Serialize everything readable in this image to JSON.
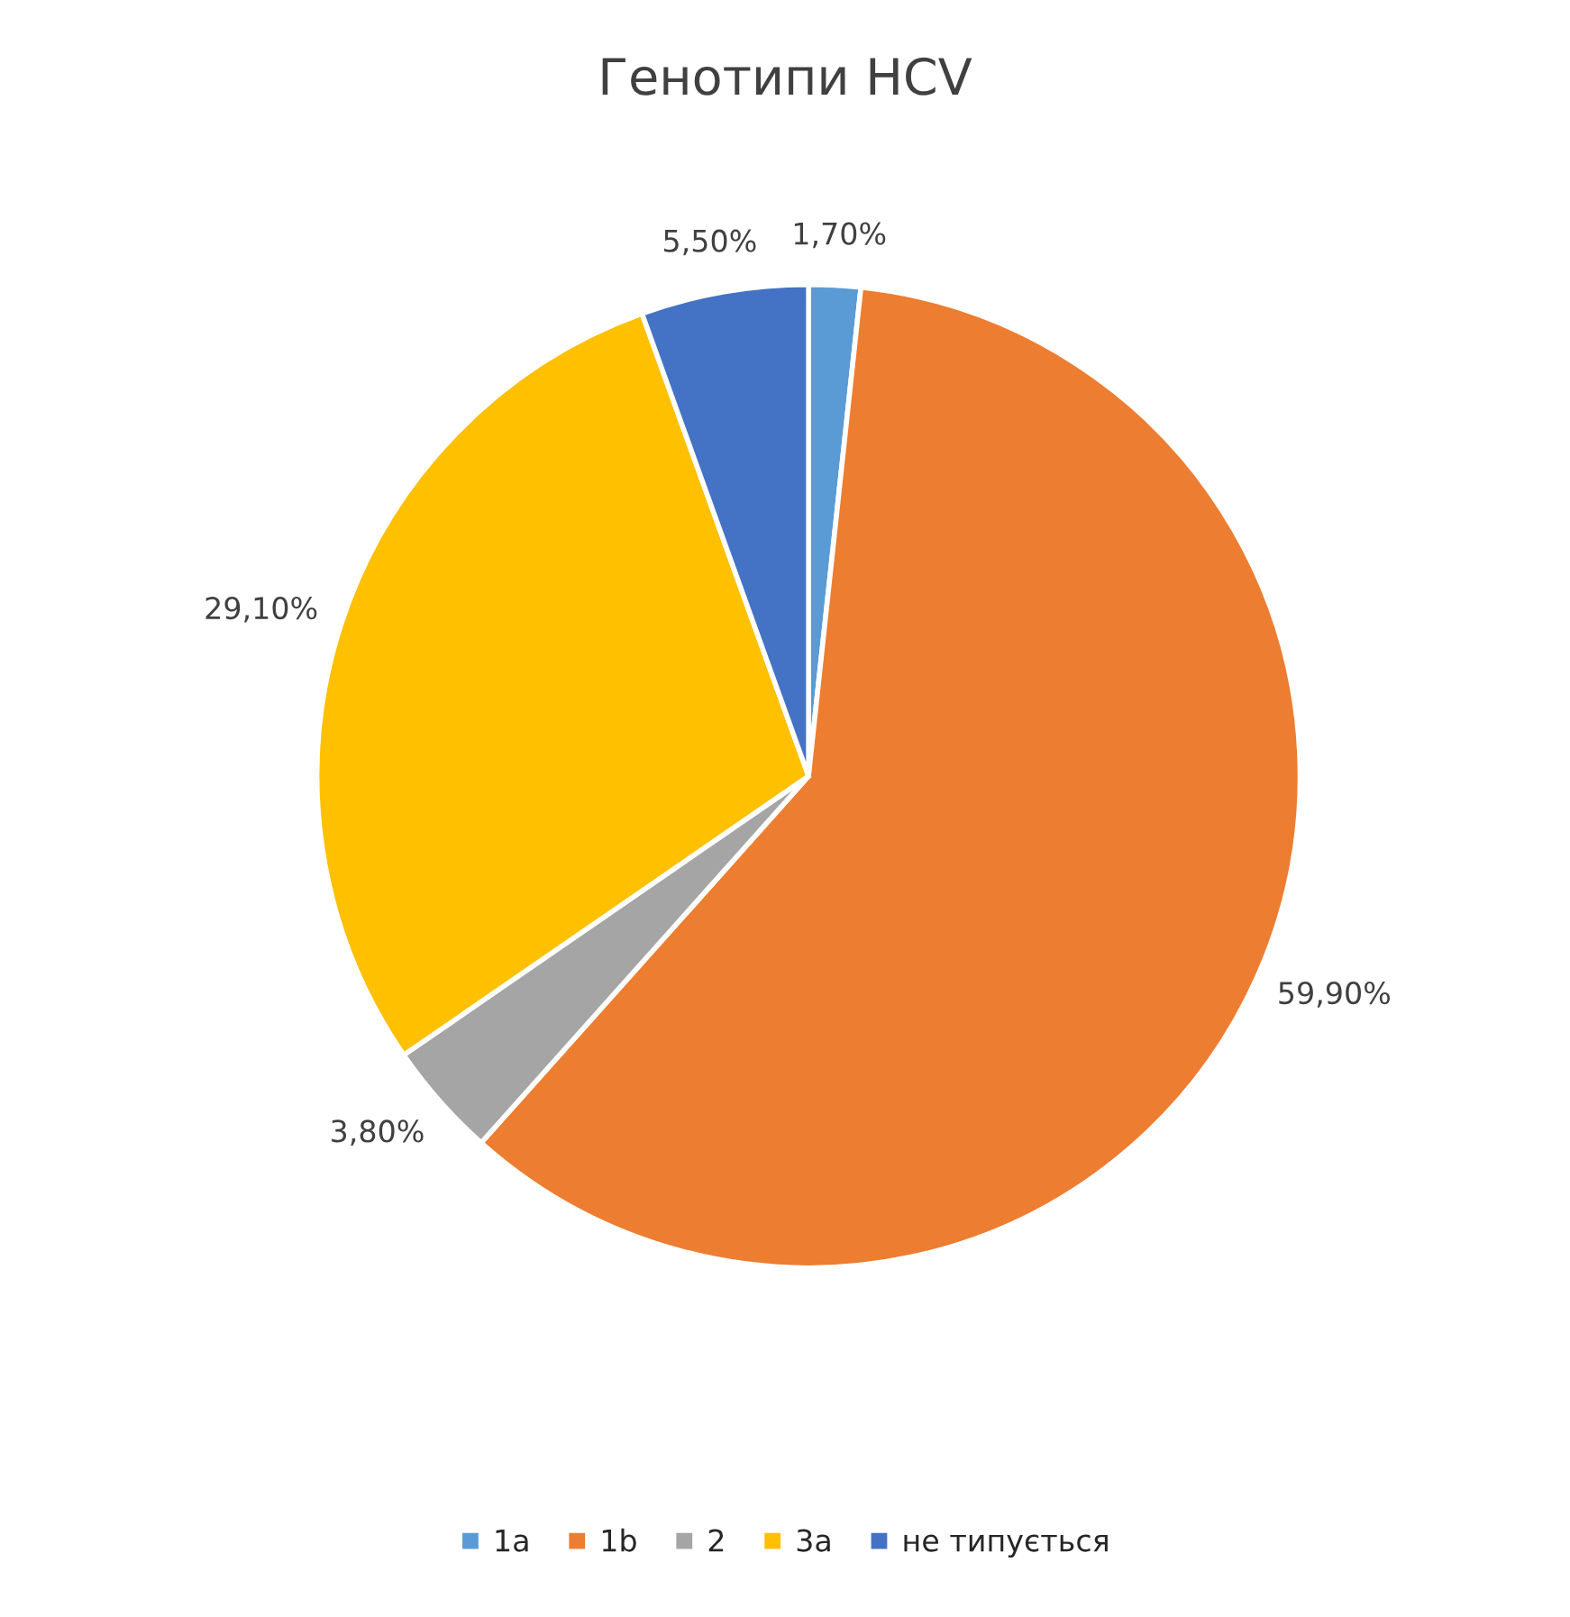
{
  "chart_data": {
    "type": "pie",
    "title": "Генотипи HCV",
    "categories": [
      "1a",
      "1b",
      "2",
      "3a",
      "не типується"
    ],
    "values": [
      1.7,
      59.9,
      3.8,
      29.1,
      5.5
    ],
    "value_labels": [
      "1,70%",
      "59,90%",
      "3,80%",
      "29,10%",
      "5,50%"
    ],
    "colors": [
      "#5b9bd5",
      "#ed7d31",
      "#a5a5a5",
      "#ffc000",
      "#4472c4"
    ],
    "legend": "bottom"
  }
}
